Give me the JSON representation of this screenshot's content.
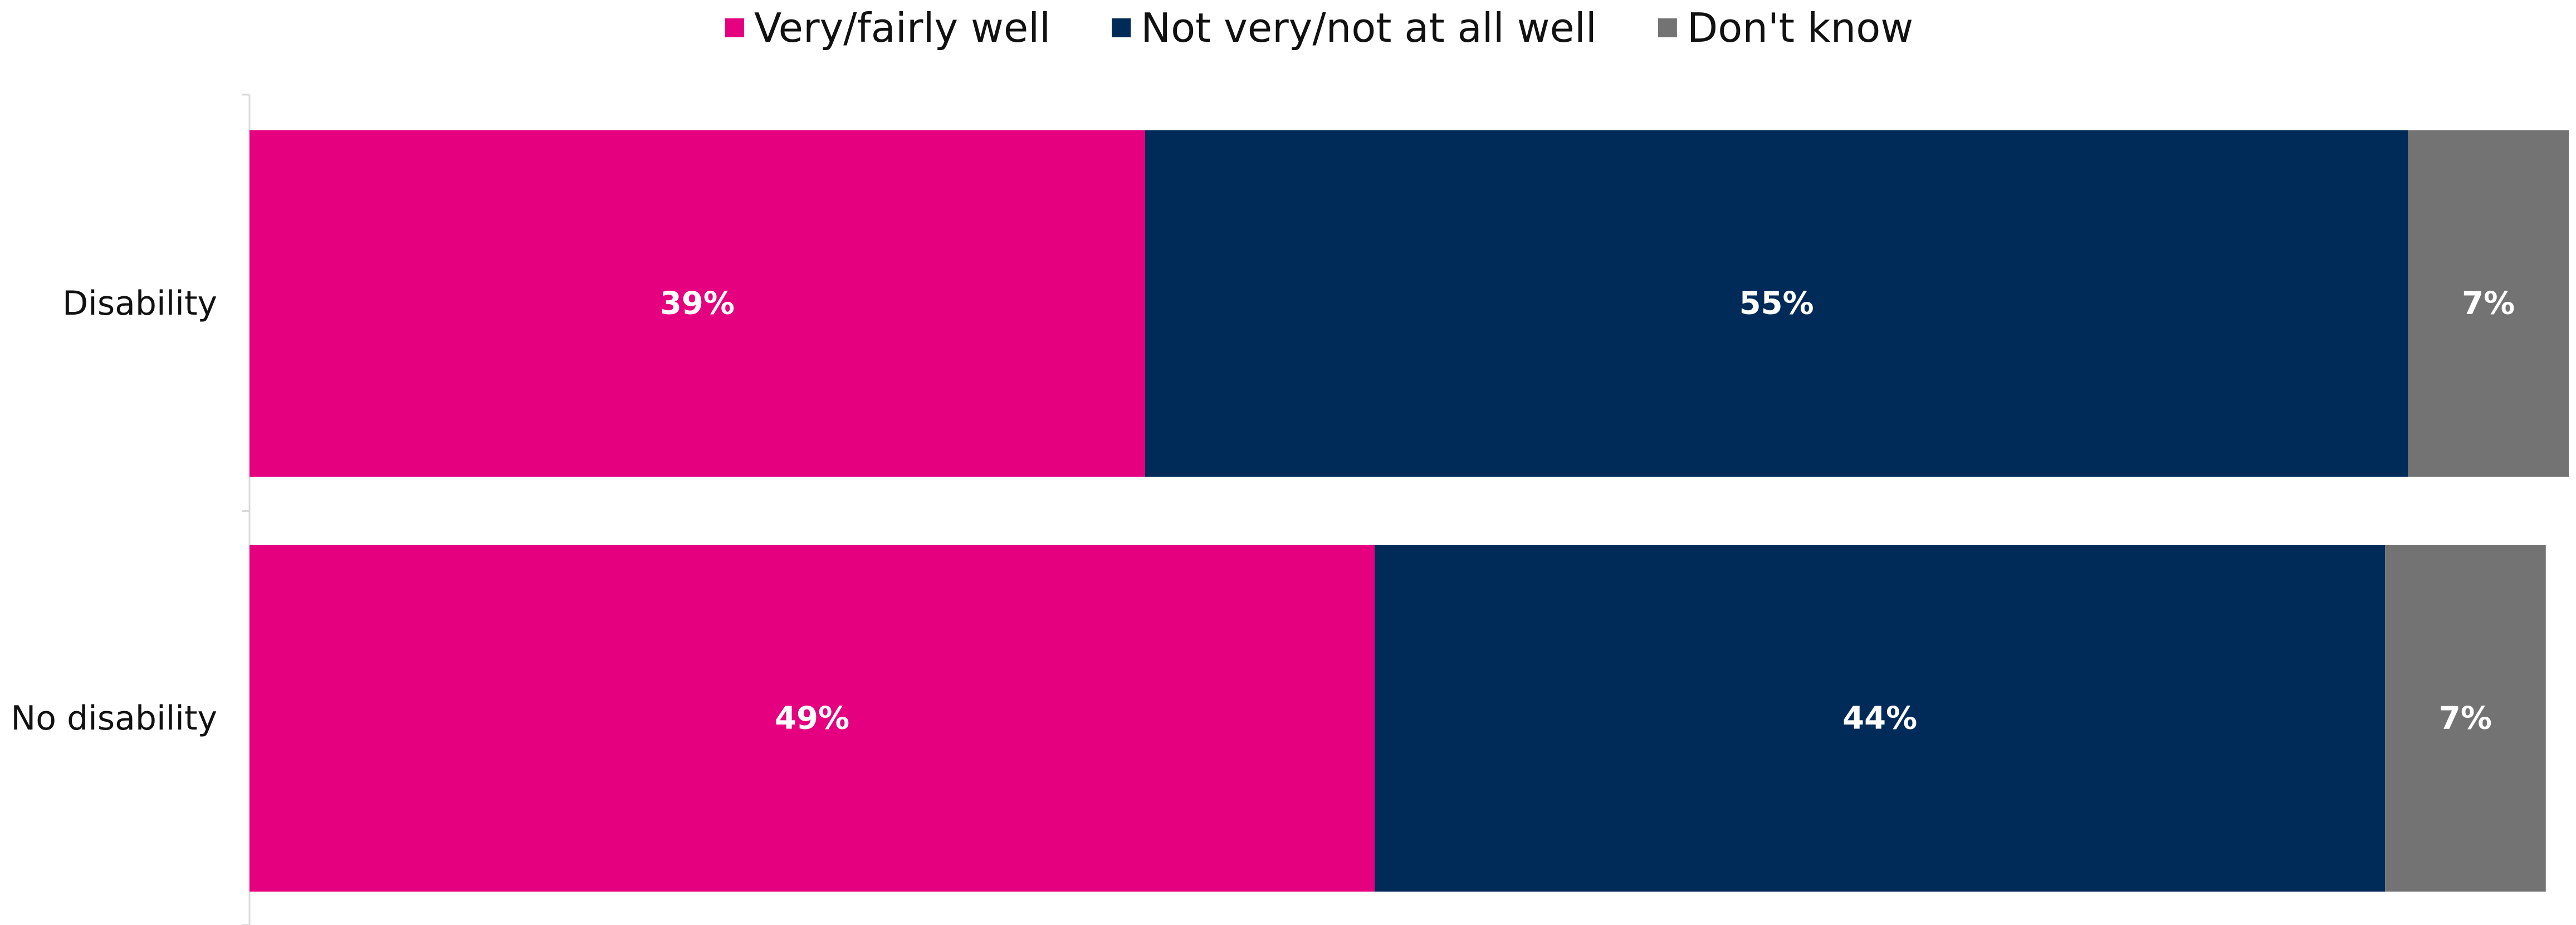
{
  "chart_data": {
    "type": "bar",
    "orientation": "horizontal",
    "stacked": true,
    "legend_position": "top",
    "grid": false,
    "xlim": [
      0,
      101
    ],
    "categories": [
      "Disability",
      "No disability"
    ],
    "series": [
      {
        "name": "Very/fairly well",
        "color": "#E4007E",
        "values": [
          39,
          49
        ],
        "labels": [
          "39%",
          "49%"
        ]
      },
      {
        "name": "Not very/not at all well",
        "color": "#002A57",
        "values": [
          55,
          44
        ],
        "labels": [
          "55%",
          "44%"
        ]
      },
      {
        "name": "Don't know",
        "color": "#737373",
        "values": [
          7,
          7
        ],
        "labels": [
          "7%",
          "7%"
        ]
      }
    ]
  }
}
